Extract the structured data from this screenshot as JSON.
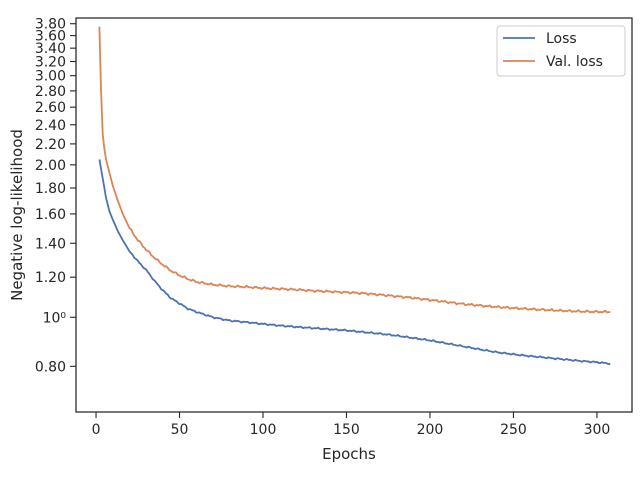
{
  "chart_data": {
    "type": "line",
    "xlabel": "Epochs",
    "ylabel": "Negative log-likelihood",
    "xlim": [
      -12,
      321
    ],
    "ylim": [
      0.65,
      3.9
    ],
    "yscale": "log",
    "grid": false,
    "legend_position": "top-right",
    "x_ticks": [
      0,
      50,
      100,
      150,
      200,
      250,
      300
    ],
    "x_tick_labels": [
      "0",
      "50",
      "100",
      "150",
      "200",
      "250",
      "300"
    ],
    "y_ticks": [
      0.8,
      1.0,
      1.2,
      1.4,
      1.6,
      1.8,
      2.0,
      2.2,
      2.4,
      2.6,
      2.8,
      3.0,
      3.2,
      3.4,
      3.6,
      3.8
    ],
    "y_tick_labels": [
      "0.80",
      "10⁰",
      "1.20",
      "1.40",
      "1.60",
      "1.80",
      "2.00",
      "2.20",
      "2.40",
      "2.60",
      "2.80",
      "3.00",
      "3.20",
      "3.40",
      "3.60",
      "3.80"
    ],
    "series": [
      {
        "name": "Loss",
        "color": "#4c72b0",
        "x": [
          2,
          4,
          6,
          8,
          10,
          13,
          16,
          20,
          25,
          30,
          35,
          40,
          45,
          50,
          55,
          60,
          70,
          80,
          90,
          100,
          110,
          120,
          130,
          140,
          150,
          160,
          170,
          180,
          190,
          200,
          210,
          220,
          230,
          240,
          250,
          260,
          270,
          280,
          290,
          300,
          308
        ],
        "y": [
          2.05,
          1.88,
          1.72,
          1.62,
          1.56,
          1.48,
          1.42,
          1.35,
          1.29,
          1.24,
          1.18,
          1.13,
          1.09,
          1.065,
          1.04,
          1.025,
          1.0,
          0.985,
          0.978,
          0.97,
          0.963,
          0.957,
          0.952,
          0.947,
          0.942,
          0.935,
          0.928,
          0.92,
          0.91,
          0.9,
          0.888,
          0.876,
          0.864,
          0.853,
          0.845,
          0.838,
          0.832,
          0.826,
          0.82,
          0.815,
          0.81
        ]
      },
      {
        "name": "Val. loss",
        "color": "#dd8452",
        "x": [
          2,
          3,
          4,
          5,
          6,
          8,
          10,
          13,
          16,
          20,
          25,
          30,
          35,
          40,
          45,
          50,
          55,
          60,
          70,
          80,
          90,
          100,
          110,
          120,
          130,
          140,
          150,
          160,
          170,
          180,
          190,
          200,
          210,
          220,
          230,
          240,
          250,
          260,
          270,
          280,
          290,
          300,
          308
        ],
        "y": [
          3.75,
          2.8,
          2.3,
          2.15,
          2.05,
          1.93,
          1.82,
          1.7,
          1.6,
          1.5,
          1.42,
          1.36,
          1.31,
          1.27,
          1.235,
          1.21,
          1.19,
          1.175,
          1.16,
          1.152,
          1.148,
          1.142,
          1.138,
          1.134,
          1.128,
          1.124,
          1.12,
          1.115,
          1.108,
          1.1,
          1.092,
          1.082,
          1.072,
          1.062,
          1.055,
          1.048,
          1.043,
          1.038,
          1.034,
          1.03,
          1.027,
          1.025,
          1.025
        ]
      }
    ]
  }
}
